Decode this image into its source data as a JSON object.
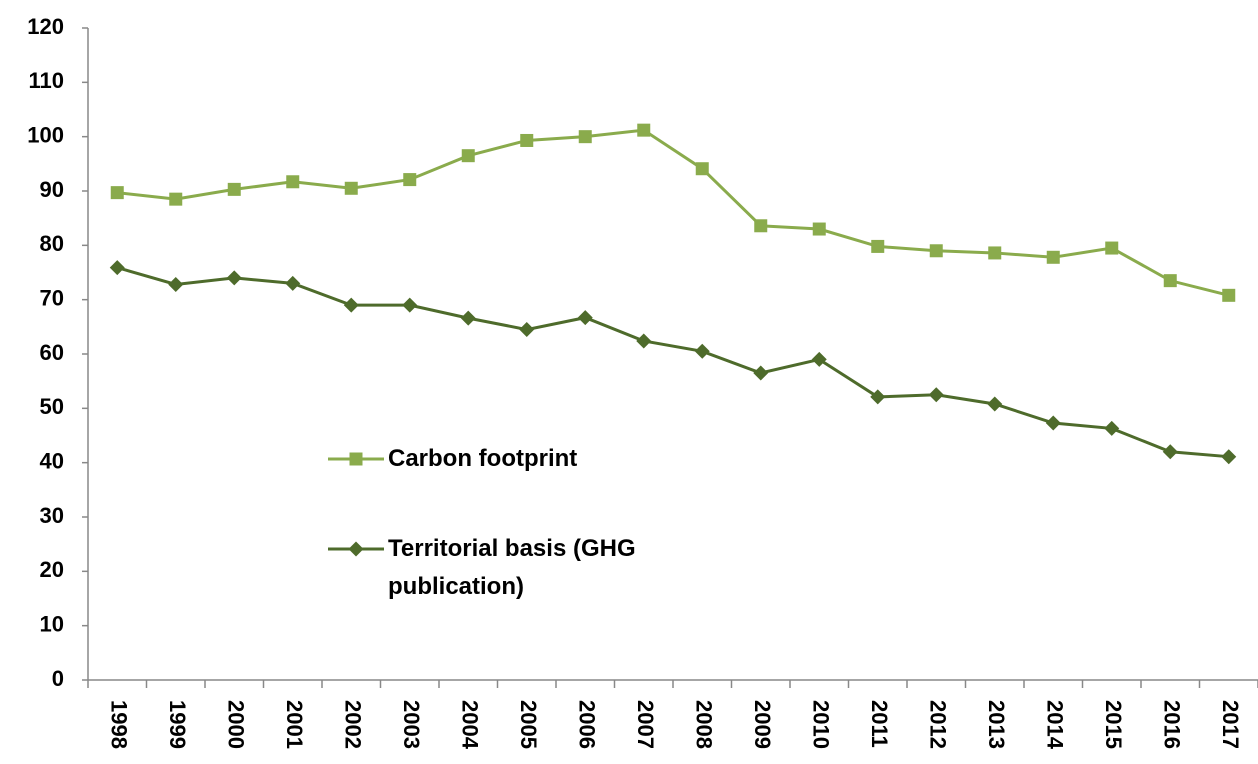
{
  "chart_data": {
    "type": "line",
    "categories": [
      "1998",
      "1999",
      "2000",
      "2001",
      "2002",
      "2003",
      "2004",
      "2005",
      "2006",
      "2007",
      "2008",
      "2009",
      "2010",
      "2011",
      "2012",
      "2013",
      "2014",
      "2015",
      "2016",
      "2017"
    ],
    "series": [
      {
        "name": "Carbon footprint",
        "color": "#8aab4c",
        "marker": "square",
        "values": [
          89.7,
          88.5,
          90.3,
          91.7,
          90.5,
          92.1,
          96.5,
          99.3,
          100,
          101.2,
          94.1,
          83.6,
          83,
          79.8,
          79,
          78.6,
          77.8,
          79.5,
          73.5,
          70.8
        ]
      },
      {
        "name": "Territorial basis (GHG publication)",
        "color": "#4e6b2b",
        "marker": "diamond",
        "values": [
          75.9,
          72.8,
          74,
          73,
          69,
          69,
          66.6,
          64.5,
          66.7,
          62.4,
          60.5,
          56.5,
          59,
          52.1,
          52.5,
          50.8,
          47.3,
          46.3,
          42,
          41.1
        ]
      }
    ],
    "ylim": [
      0,
      120
    ],
    "yticks": [
      0,
      10,
      20,
      30,
      40,
      50,
      60,
      70,
      80,
      90,
      100,
      110,
      120
    ],
    "grid": false
  }
}
